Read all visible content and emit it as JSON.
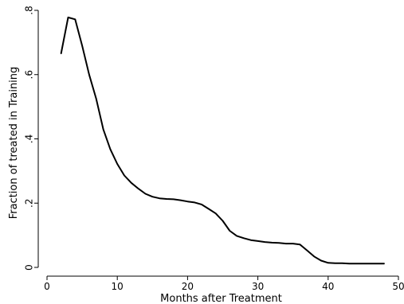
{
  "chart_data": {
    "type": "line",
    "title": "",
    "xlabel": "Months after Treatment",
    "ylabel": "Fraction of treated in Training",
    "xlim": [
      0,
      50
    ],
    "ylim": [
      0,
      0.8
    ],
    "grid": false,
    "x_ticks": [
      {
        "value": 0,
        "label": "0"
      },
      {
        "value": 10,
        "label": "10"
      },
      {
        "value": 20,
        "label": "20"
      },
      {
        "value": 30,
        "label": "30"
      },
      {
        "value": 40,
        "label": "40"
      },
      {
        "value": 50,
        "label": "50"
      }
    ],
    "y_ticks": [
      {
        "value": 0,
        "label": "0"
      },
      {
        "value": 0.2,
        "label": ".2"
      },
      {
        "value": 0.4,
        "label": ".4"
      },
      {
        "value": 0.6,
        "label": ".6"
      },
      {
        "value": 0.8,
        "label": ".8"
      }
    ],
    "series": [
      {
        "color": "#000000",
        "x": [
          2,
          3,
          4,
          5,
          6,
          7,
          8,
          9,
          10,
          11,
          12,
          13,
          14,
          15,
          16,
          17,
          18,
          19,
          20,
          21,
          22,
          23,
          24,
          25,
          26,
          27,
          28,
          29,
          30,
          31,
          32,
          33,
          34,
          35,
          36,
          37,
          38,
          39,
          40,
          41,
          42,
          43,
          44,
          45,
          46,
          47,
          48
        ],
        "y": [
          0.665,
          0.778,
          0.772,
          0.69,
          0.6,
          0.525,
          0.43,
          0.368,
          0.322,
          0.286,
          0.263,
          0.245,
          0.229,
          0.22,
          0.215,
          0.213,
          0.212,
          0.209,
          0.205,
          0.202,
          0.196,
          0.182,
          0.168,
          0.145,
          0.114,
          0.098,
          0.091,
          0.085,
          0.082,
          0.079,
          0.077,
          0.076,
          0.074,
          0.074,
          0.071,
          0.053,
          0.034,
          0.021,
          0.014,
          0.013,
          0.013,
          0.012,
          0.012,
          0.012,
          0.012,
          0.012,
          0.012
        ]
      }
    ]
  }
}
